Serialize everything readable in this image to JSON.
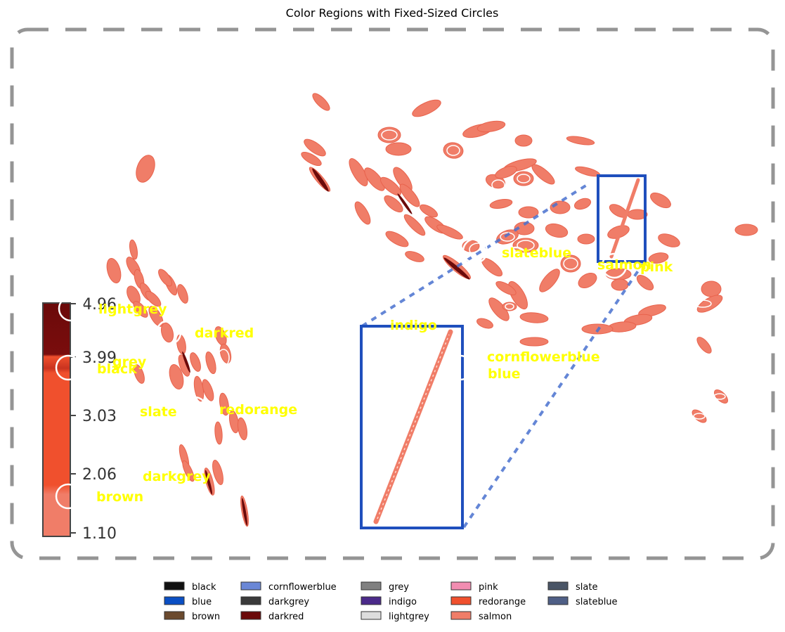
{
  "chart_data": {
    "type": "other",
    "title": "Color Regions with Fixed-Sized Circles",
    "colorbar": {
      "ticks": [
        "4.96",
        "3.99",
        "3.03",
        "2.06",
        "1.10"
      ]
    },
    "region_labels": [
      "lightgrey",
      "darkred",
      "grey",
      "black",
      "slate",
      "redorange",
      "darkgrey",
      "brown",
      "indigo",
      "cornflowerblue",
      "blue",
      "slateblue",
      "salmon",
      "pink"
    ],
    "legend": [
      {
        "label": "black",
        "color": "#111111"
      },
      {
        "label": "blue",
        "color": "#0a4fc4"
      },
      {
        "label": "brown",
        "color": "#6b4a2e"
      },
      {
        "label": "cornflowerblue",
        "color": "#6a87d6"
      },
      {
        "label": "darkgrey",
        "color": "#3a3a3a"
      },
      {
        "label": "darkred",
        "color": "#6b0a0a"
      },
      {
        "label": "grey",
        "color": "#808080"
      },
      {
        "label": "indigo",
        "color": "#4b2a8a"
      },
      {
        "label": "lightgrey",
        "color": "#dddddd"
      },
      {
        "label": "pink",
        "color": "#f28db1"
      },
      {
        "label": "redorange",
        "color": "#f0502d"
      },
      {
        "label": "salmon",
        "color": "#f07d68"
      },
      {
        "label": "slate",
        "color": "#4a5566"
      },
      {
        "label": "slateblue",
        "color": "#4f5f86"
      }
    ],
    "legend_position": "bottom-center",
    "grid": false
  }
}
